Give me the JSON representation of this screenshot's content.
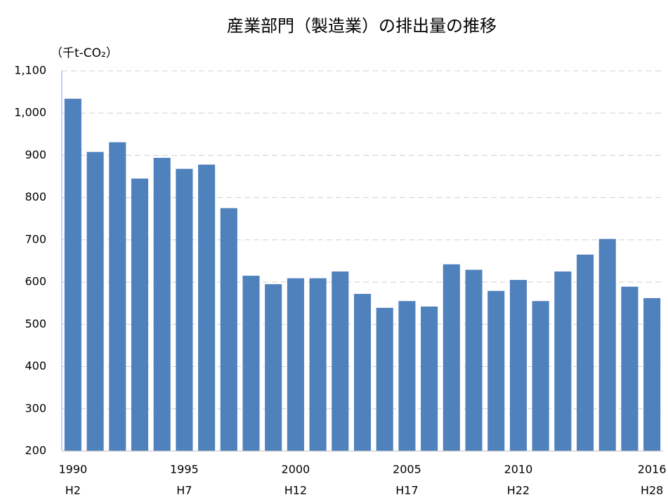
{
  "chart_data": {
    "type": "bar",
    "title": "産業部門（製造業）の排出量の推移",
    "y_label": "（千t-CO₂）",
    "x": [
      1990,
      1991,
      1992,
      1993,
      1994,
      1995,
      1996,
      1997,
      1998,
      1999,
      2000,
      2001,
      2002,
      2003,
      2004,
      2005,
      2006,
      2007,
      2008,
      2009,
      2010,
      2011,
      2012,
      2013,
      2014,
      2015,
      2016
    ],
    "values": [
      1034,
      908,
      931,
      845,
      894,
      868,
      878,
      775,
      615,
      595,
      609,
      609,
      625,
      572,
      539,
      555,
      542,
      642,
      629,
      579,
      605,
      555,
      625,
      665,
      702,
      589,
      562
    ],
    "color": "#4f81bd",
    "xlim": [
      1989.5,
      2016.5
    ],
    "xticks": [
      1990,
      1995,
      2000,
      2005,
      2010,
      2016
    ],
    "xticks_era": [
      "H2",
      "H7",
      "H12",
      "H17",
      "H22",
      "H28"
    ],
    "ylim": [
      200,
      1100
    ],
    "yticks": [
      {
        "value": 200,
        "label": "200"
      },
      {
        "value": 300,
        "label": "300"
      },
      {
        "value": 400,
        "label": "400"
      },
      {
        "value": 500,
        "label": "500"
      },
      {
        "value": 600,
        "label": "600"
      },
      {
        "value": 700,
        "label": "700"
      },
      {
        "value": 800,
        "label": "800"
      },
      {
        "value": 900,
        "label": "900"
      },
      {
        "value": 1000,
        "label": "1,000"
      },
      {
        "value": 1100,
        "label": "1,100"
      }
    ],
    "grid": true
  }
}
